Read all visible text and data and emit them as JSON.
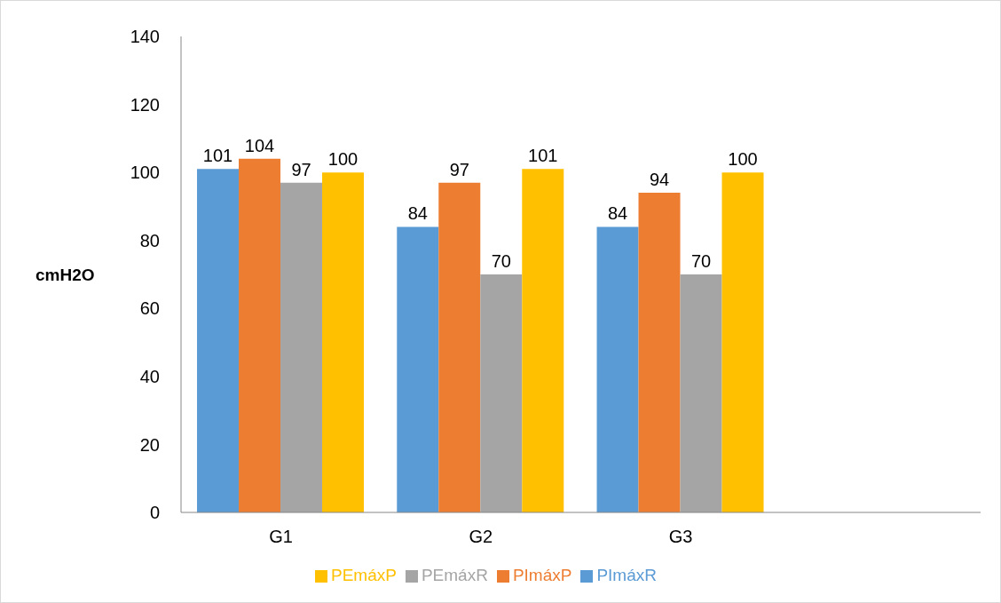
{
  "chart_data": {
    "type": "bar",
    "ylabel": "cmH2O",
    "categories": [
      "G1",
      "G2",
      "G3",
      null
    ],
    "series": [
      {
        "name": "PImáxR",
        "color": "#5b9bd5",
        "values": [
          101,
          84,
          84,
          null
        ]
      },
      {
        "name": "PImáxP",
        "color": "#ed7d31",
        "values": [
          104,
          97,
          94,
          null
        ]
      },
      {
        "name": "PEmáxR",
        "color": "#a5a5a5",
        "values": [
          97,
          70,
          70,
          null
        ]
      },
      {
        "name": "PEmáxP",
        "color": "#ffc000",
        "values": [
          100,
          101,
          100,
          null
        ]
      }
    ],
    "ylim": [
      0,
      140
    ],
    "yticks": [
      0,
      20,
      40,
      60,
      80,
      100,
      120,
      140
    ],
    "grid": false,
    "legend": "bottom",
    "data_labels": true
  }
}
